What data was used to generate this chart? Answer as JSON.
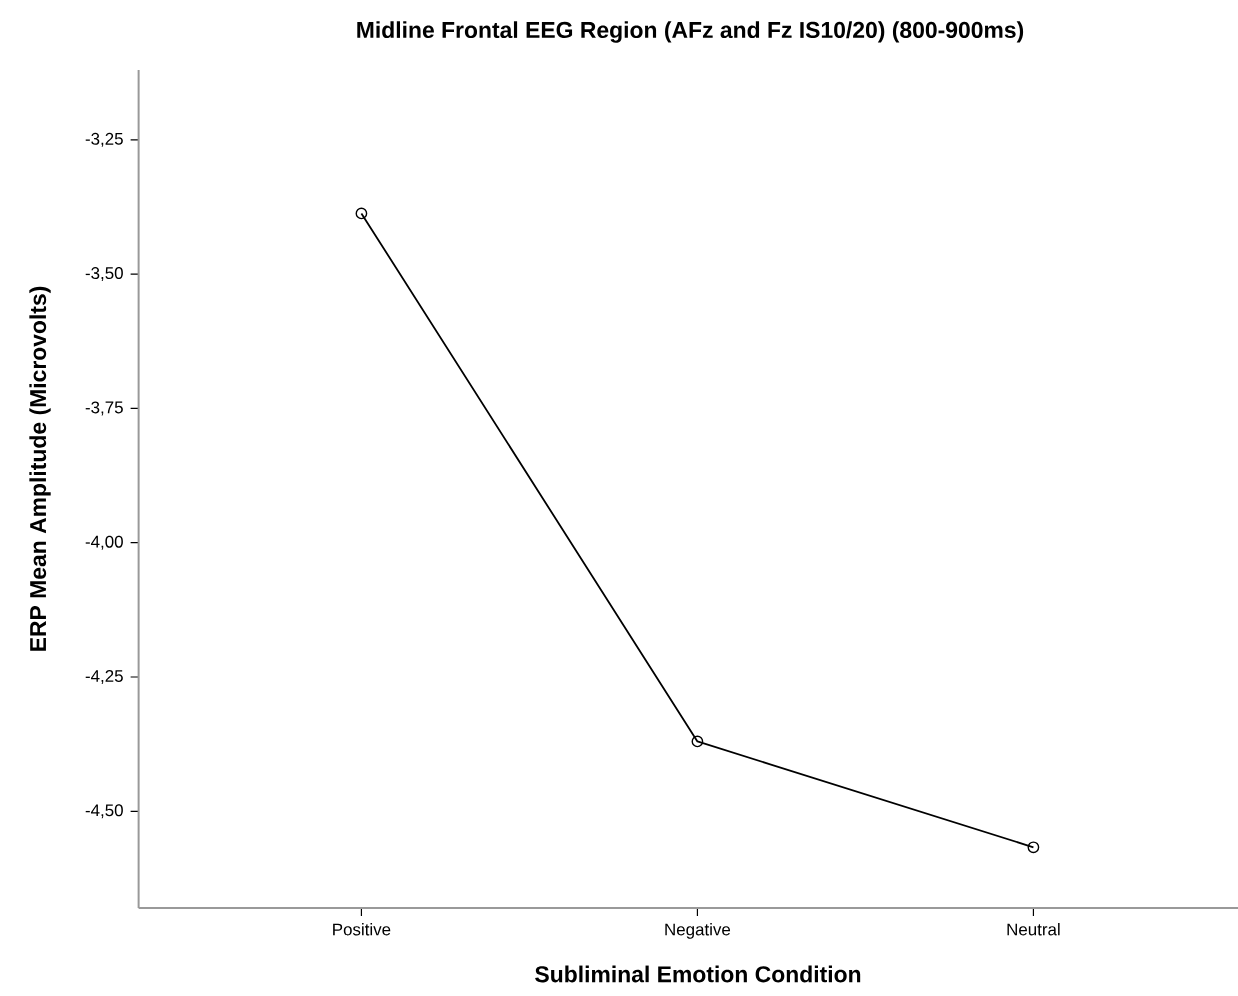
{
  "chart_data": {
    "type": "line",
    "title": "Midline Frontal EEG Region (AFz and Fz IS10/20) (800-900ms)",
    "xlabel": "Subliminal Emotion Condition",
    "ylabel": "ERP Mean Amplitude (Microvolts)",
    "categories": [
      "Positive",
      "Negative",
      "Neutral"
    ],
    "series": [
      {
        "color": "#000000",
        "values": [
          -3.387,
          -4.37,
          -4.567
        ]
      }
    ],
    "ylim": [
      -4.68,
      -3.12
    ],
    "yticks": [
      {
        "value": -3.25,
        "label": "-3,25"
      },
      {
        "value": -3.5,
        "label": "-3,50"
      },
      {
        "value": -3.75,
        "label": "-3,75"
      },
      {
        "value": -4.0,
        "label": "-4,00"
      },
      {
        "value": -4.25,
        "label": "-4,25"
      },
      {
        "value": -4.5,
        "label": "-4,50"
      }
    ],
    "marker": "circle",
    "line_style": "solid"
  }
}
